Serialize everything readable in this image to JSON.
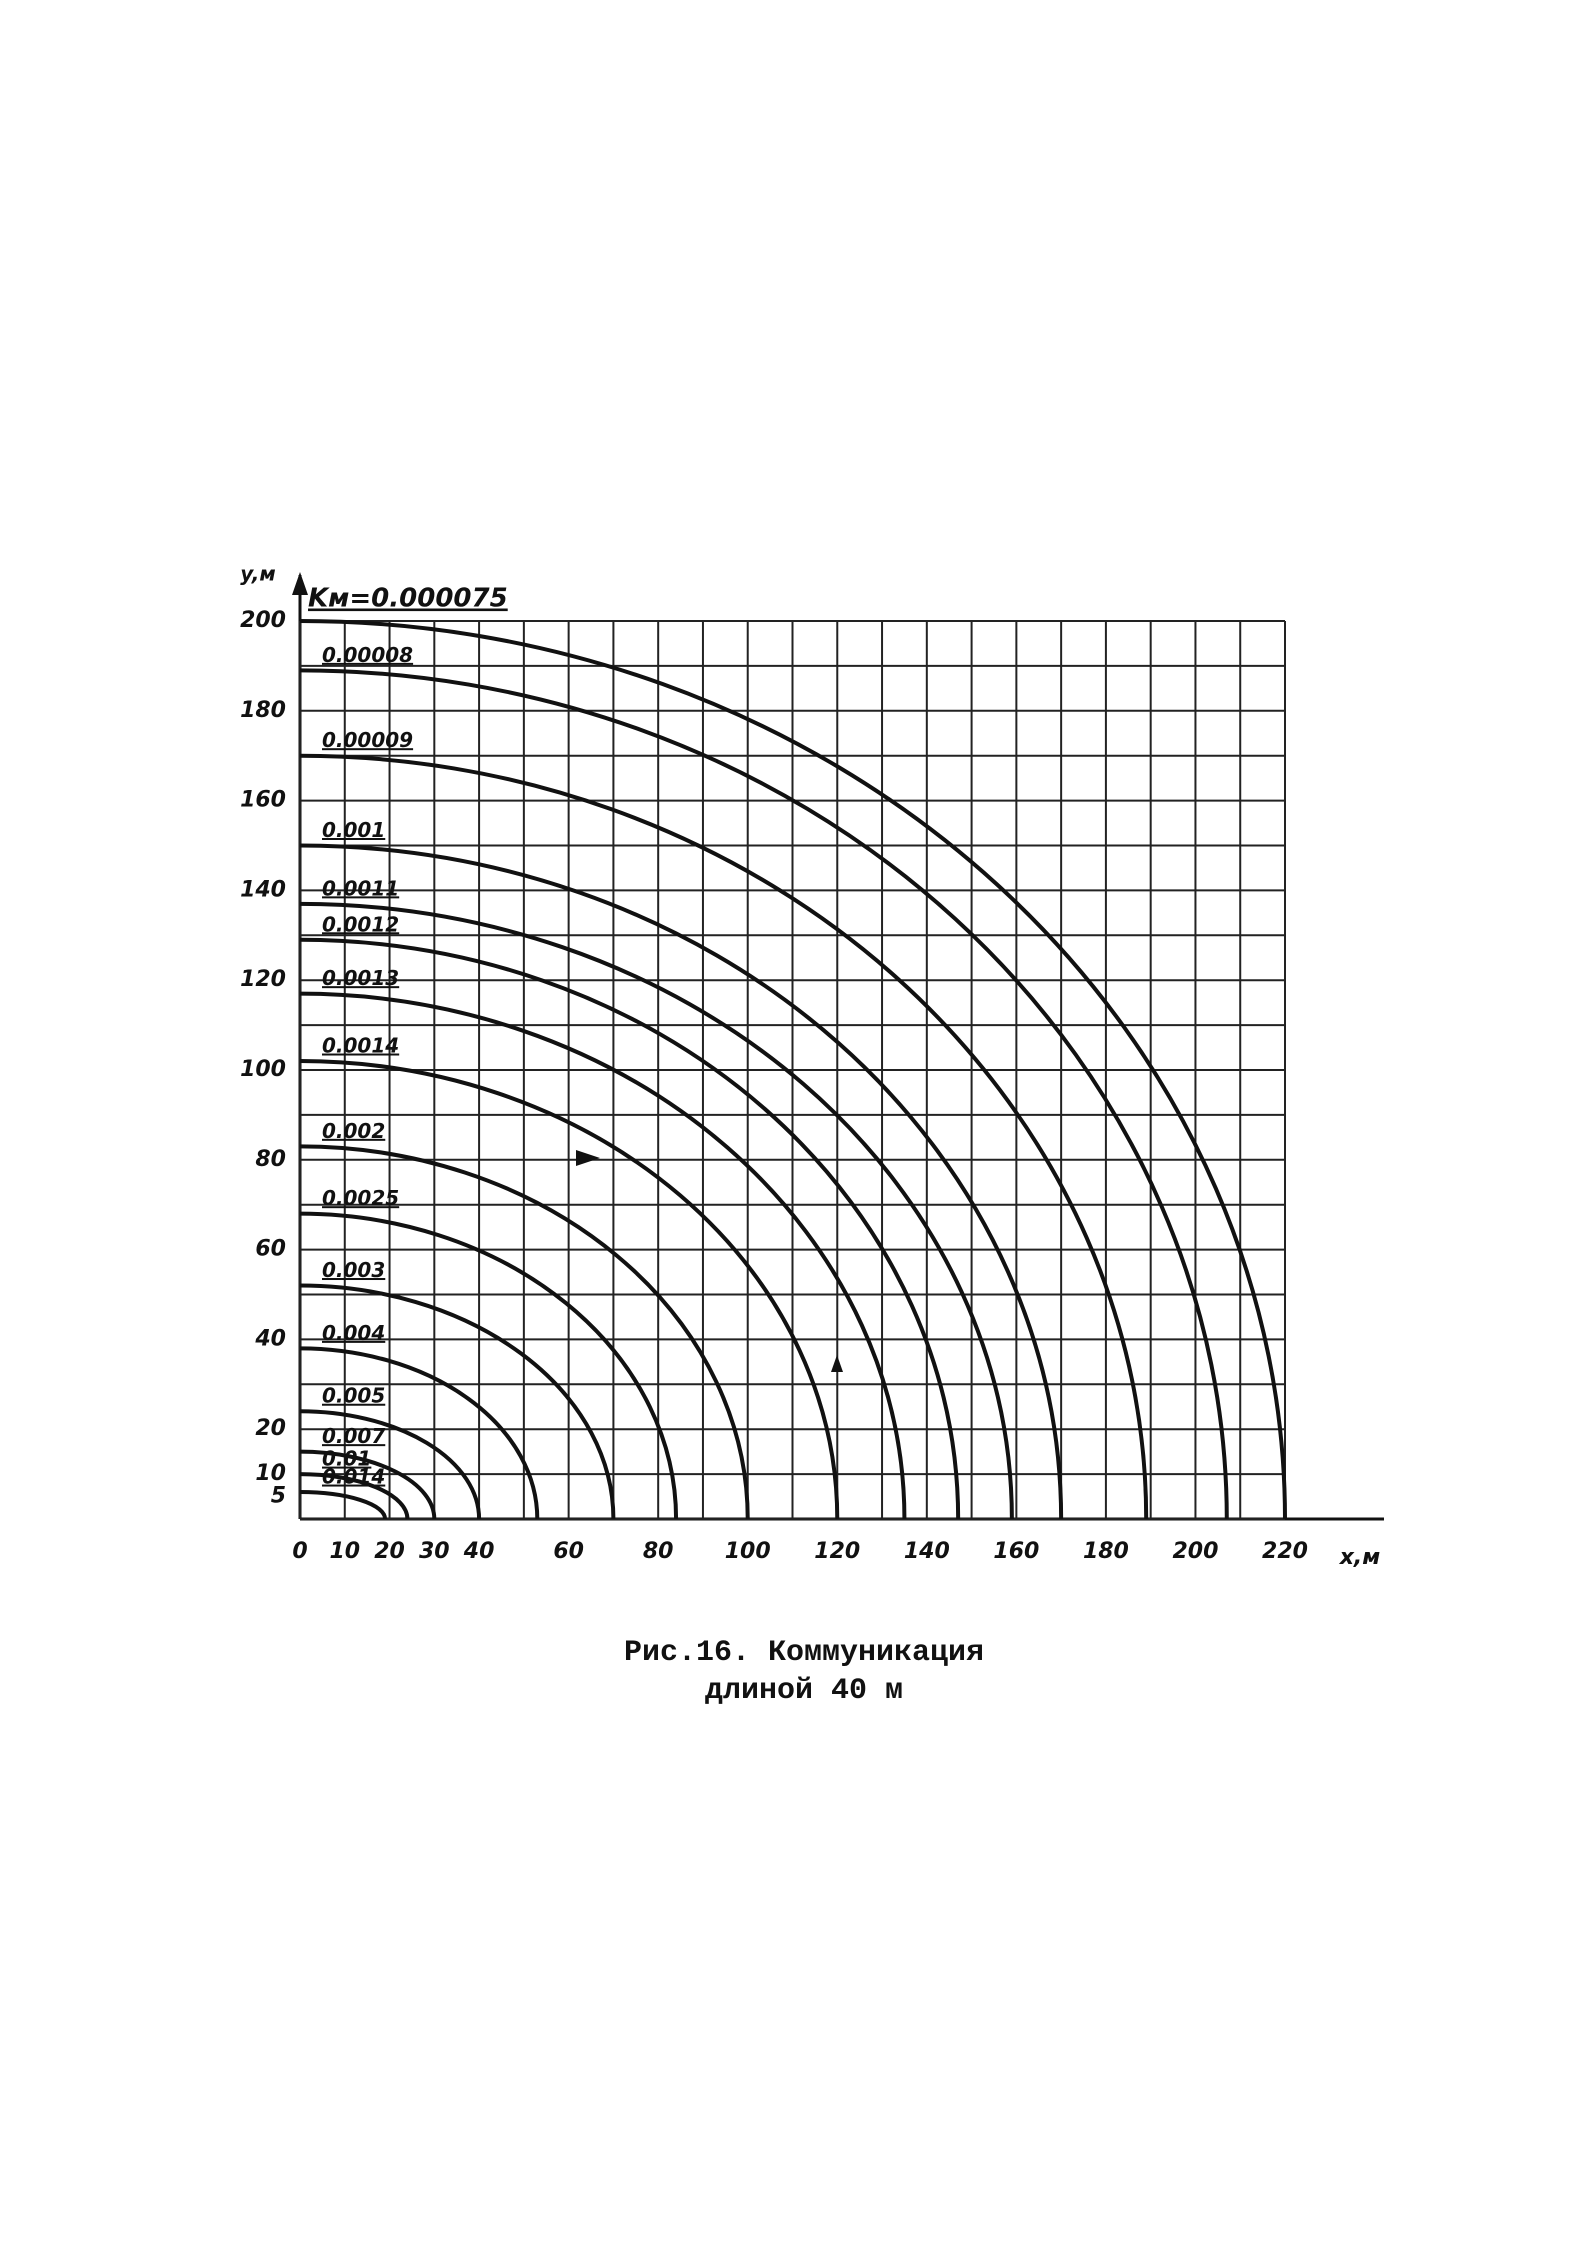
{
  "chart_data": {
    "type": "curves",
    "title": "Рис.16. Коммуникация",
    "subtitle": "длиной 40 м",
    "x_label": "x,м",
    "y_label": "y,м",
    "xlim": [
      0,
      220
    ],
    "ylim": [
      0,
      200
    ],
    "xticks": [
      0,
      10,
      20,
      30,
      40,
      60,
      80,
      100,
      120,
      140,
      160,
      180,
      200,
      220
    ],
    "yticks": [
      5,
      10,
      20,
      40,
      60,
      80,
      100,
      120,
      140,
      160,
      180,
      200
    ],
    "xgrid": [
      0,
      10,
      20,
      30,
      40,
      50,
      60,
      70,
      80,
      90,
      100,
      110,
      120,
      130,
      140,
      150,
      160,
      170,
      180,
      190,
      200,
      210,
      220
    ],
    "ygrid": [
      0,
      10,
      20,
      30,
      40,
      50,
      60,
      70,
      80,
      90,
      100,
      110,
      120,
      130,
      140,
      150,
      160,
      170,
      180,
      190,
      200
    ],
    "color": "#111111",
    "series": [
      {
        "name": "Kм=0.000075",
        "x": [
          0,
          220
        ],
        "values": [
          200,
          0
        ]
      },
      {
        "name": "0.00008",
        "x": [
          0,
          207
        ],
        "values": [
          189,
          0
        ]
      },
      {
        "name": "0.00009",
        "x": [
          0,
          189
        ],
        "values": [
          170,
          0
        ]
      },
      {
        "name": "0.001",
        "x": [
          0,
          170
        ],
        "values": [
          150,
          0
        ]
      },
      {
        "name": "0.0011",
        "x": [
          0,
          159
        ],
        "values": [
          137,
          0
        ]
      },
      {
        "name": "0.0012",
        "x": [
          0,
          147
        ],
        "values": [
          129,
          0
        ]
      },
      {
        "name": "0.0013",
        "x": [
          0,
          135
        ],
        "values": [
          117,
          0
        ]
      },
      {
        "name": "0.0014",
        "x": [
          0,
          120
        ],
        "values": [
          102,
          0
        ]
      },
      {
        "name": "0.002",
        "x": [
          0,
          100
        ],
        "values": [
          83,
          0
        ]
      },
      {
        "name": "0.0025",
        "x": [
          0,
          84
        ],
        "values": [
          68,
          0
        ]
      },
      {
        "name": "0.003",
        "x": [
          0,
          70
        ],
        "values": [
          52,
          0
        ]
      },
      {
        "name": "0.004",
        "x": [
          0,
          53
        ],
        "values": [
          38,
          0
        ]
      },
      {
        "name": "0.005",
        "x": [
          0,
          40
        ],
        "values": [
          24,
          0
        ]
      },
      {
        "name": "0.007",
        "x": [
          0,
          30
        ],
        "values": [
          15,
          0
        ]
      },
      {
        "name": "0.01",
        "x": [
          0,
          24
        ],
        "values": [
          10,
          0
        ]
      },
      {
        "name": "0.014",
        "x": [
          0,
          19
        ],
        "values": [
          6,
          0
        ]
      }
    ]
  }
}
